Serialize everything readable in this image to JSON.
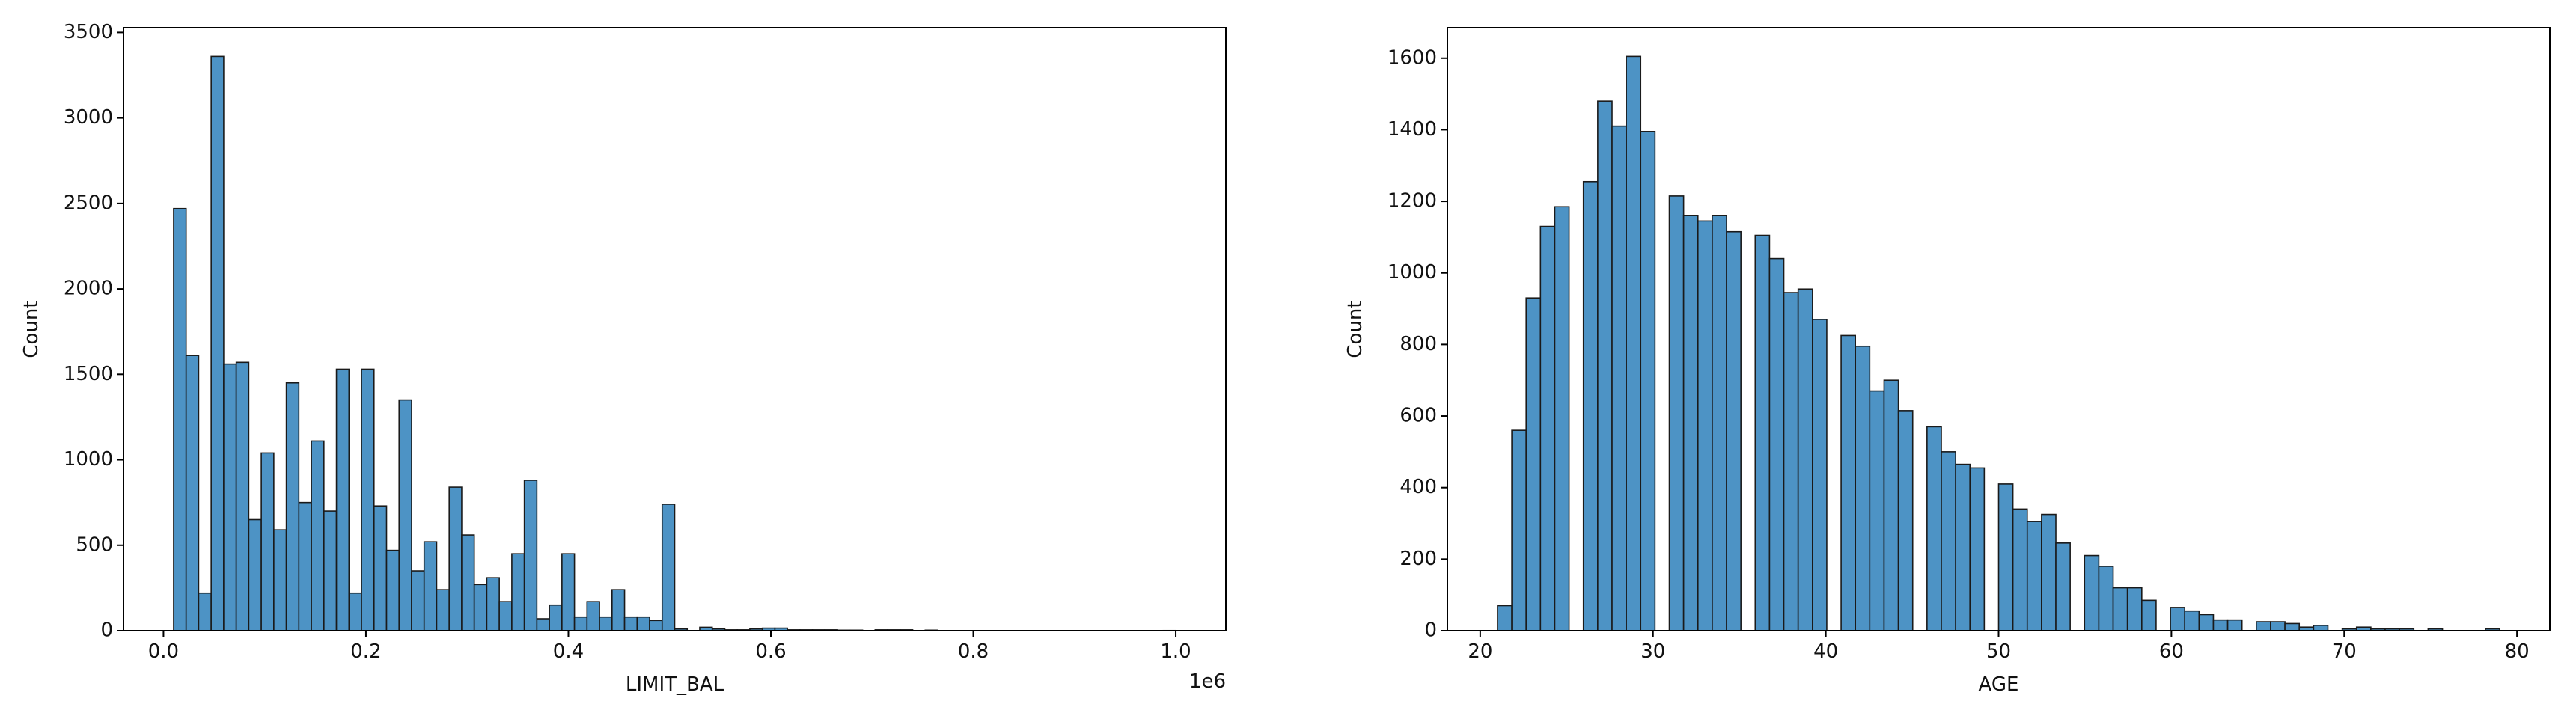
{
  "chart_data": [
    {
      "type": "histogram",
      "xlabel": "LIMIT_BAL",
      "ylabel": "Count",
      "x_offset_text": "1e6",
      "color": "#4d93c5",
      "edgecolor": "#1a1a1a",
      "bins": [
        0.01,
        0.022375,
        0.03475,
        0.047125,
        0.0595,
        0.071875,
        0.08425,
        0.096625,
        0.109,
        0.121375,
        0.13375,
        0.146125,
        0.1585,
        0.170875,
        0.18325,
        0.195625,
        0.208,
        0.220375,
        0.23275,
        0.245125,
        0.2575,
        0.269875,
        0.28225,
        0.294625,
        0.307,
        0.319375,
        0.33175,
        0.344125,
        0.3565,
        0.368875,
        0.38125,
        0.393625,
        0.406,
        0.418375,
        0.43075,
        0.443125,
        0.4555,
        0.467875,
        0.48025,
        0.492625,
        0.505,
        0.517375,
        0.52975,
        0.542125,
        0.5545,
        0.566875,
        0.57925,
        0.591625,
        0.604,
        0.616375,
        0.62875,
        0.641125,
        0.6535,
        0.665875,
        0.67825,
        0.690625,
        0.703,
        0.715375,
        0.72775,
        0.740125,
        0.7525,
        0.764875,
        0.77725,
        0.789625,
        0.802,
        0.814375,
        0.82675,
        0.839125,
        0.8515,
        0.863875,
        0.87625,
        0.888625,
        0.901,
        0.913375,
        0.92575,
        0.938125,
        0.9505,
        0.962875,
        0.97525,
        0.987625,
        1.0
      ],
      "values": [
        2470,
        1610,
        220,
        3360,
        1560,
        1570,
        650,
        1040,
        590,
        1450,
        750,
        1110,
        700,
        1530,
        220,
        1530,
        730,
        470,
        1350,
        350,
        520,
        240,
        840,
        560,
        270,
        310,
        170,
        450,
        880,
        70,
        150,
        450,
        80,
        170,
        80,
        240,
        80,
        80,
        60,
        740,
        10,
        0,
        20,
        10,
        5,
        5,
        10,
        15,
        15,
        5,
        5,
        5,
        5,
        3,
        3,
        0,
        5,
        5,
        5,
        0,
        3,
        0,
        0,
        0,
        0,
        0,
        0,
        0,
        0,
        0,
        0,
        0,
        0,
        0,
        0,
        0,
        0,
        0,
        0,
        1
      ],
      "xlim": [
        -0.0395,
        1.0495
      ],
      "ylim": [
        0,
        3528
      ],
      "xticks": [
        {
          "value": 0,
          "label": "0.0"
        },
        0.2,
        0.4,
        0.6,
        0.8,
        {
          "value": 1,
          "label": "1.0"
        }
      ],
      "yticks": [
        0,
        500,
        1000,
        1500,
        2000,
        2500,
        3000,
        3500
      ]
    },
    {
      "type": "histogram",
      "xlabel": "AGE",
      "ylabel": "Count",
      "color": "#4d93c5",
      "edgecolor": "#1a1a1a",
      "bins": [
        21,
        21.829,
        22.657,
        23.486,
        24.314,
        25.143,
        25.971,
        26.8,
        27.629,
        28.457,
        29.286,
        30.114,
        30.943,
        31.771,
        32.6,
        33.429,
        34.257,
        35.086,
        35.914,
        36.743,
        37.571,
        38.4,
        39.229,
        40.057,
        40.886,
        41.714,
        42.543,
        43.371,
        44.2,
        45.029,
        45.857,
        46.686,
        47.514,
        48.343,
        49.171,
        50,
        50.829,
        51.657,
        52.486,
        53.314,
        54.143,
        54.971,
        55.8,
        56.629,
        57.457,
        58.286,
        59.114,
        59.943,
        60.771,
        61.6,
        62.429,
        63.257,
        64.086,
        64.914,
        65.743,
        66.571,
        67.4,
        68.229,
        69.057,
        69.886,
        70.714,
        71.543,
        72.371,
        73.2,
        74.029,
        74.857,
        75.686,
        76.514,
        77.343,
        78.171,
        79
      ],
      "values": [
        70,
        560,
        930,
        1130,
        1185,
        0,
        1255,
        1480,
        1410,
        1605,
        1395,
        0,
        1215,
        1160,
        1145,
        1160,
        1115,
        0,
        1105,
        1040,
        945,
        955,
        870,
        0,
        825,
        795,
        670,
        700,
        615,
        0,
        570,
        500,
        465,
        455,
        0,
        410,
        340,
        305,
        325,
        245,
        0,
        210,
        180,
        120,
        120,
        85,
        0,
        65,
        55,
        45,
        30,
        30,
        0,
        25,
        25,
        20,
        10,
        15,
        0,
        5,
        10,
        5,
        5,
        5,
        0,
        5,
        0,
        0,
        0,
        5
      ],
      "xlim": [
        18.1,
        81.9
      ],
      "ylim": [
        0,
        1685.25
      ],
      "xticks": [
        20,
        30,
        40,
        50,
        60,
        70,
        80
      ],
      "yticks": [
        0,
        200,
        400,
        600,
        800,
        1000,
        1200,
        1400,
        1600
      ]
    }
  ]
}
